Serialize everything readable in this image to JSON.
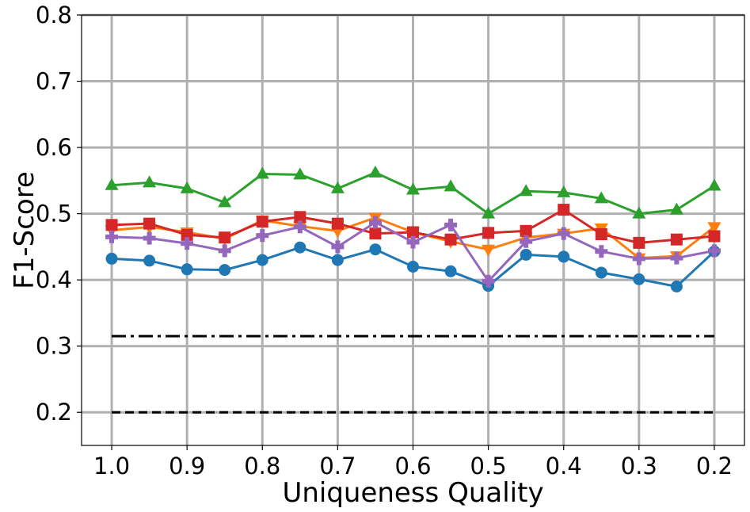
{
  "chart_data": {
    "type": "line",
    "xlabel": "Uniqueness Quality",
    "ylabel": "F1-Score",
    "x": [
      1.0,
      0.95,
      0.9,
      0.85,
      0.8,
      0.75,
      0.7,
      0.65,
      0.6,
      0.55,
      0.5,
      0.45,
      0.4,
      0.35,
      0.3,
      0.25,
      0.2
    ],
    "x_reversed": true,
    "xlim": [
      1.04,
      0.16
    ],
    "ylim": [
      0.15,
      0.8
    ],
    "xticks": [
      1.0,
      0.9,
      0.8,
      0.7,
      0.6,
      0.5,
      0.4,
      0.3,
      0.2
    ],
    "xtick_labels": [
      "1.0",
      "0.9",
      "0.8",
      "0.7",
      "0.6",
      "0.5",
      "0.4",
      "0.3",
      "0.2"
    ],
    "yticks": [
      0.2,
      0.3,
      0.4,
      0.5,
      0.6,
      0.7,
      0.8
    ],
    "ytick_labels": [
      "0.2",
      "0.3",
      "0.4",
      "0.5",
      "0.6",
      "0.7",
      "0.8"
    ],
    "grid": true,
    "grid_color": "#b0b0b0",
    "series": [
      {
        "color": "#1f77b4",
        "marker": "circle",
        "values": [
          0.432,
          0.429,
          0.416,
          0.415,
          0.43,
          0.449,
          0.43,
          0.446,
          0.42,
          0.413,
          0.391,
          0.438,
          0.435,
          0.411,
          0.401,
          0.39,
          0.443
        ]
      },
      {
        "color": "#ff7f0e",
        "marker": "triangle-down",
        "values": [
          0.475,
          0.48,
          0.472,
          0.462,
          0.49,
          0.481,
          0.474,
          0.494,
          0.472,
          0.458,
          0.446,
          0.464,
          0.47,
          0.478,
          0.433,
          0.436,
          0.48
        ]
      },
      {
        "color": "#2ca02c",
        "marker": "triangle-up",
        "values": [
          0.543,
          0.547,
          0.538,
          0.517,
          0.56,
          0.559,
          0.538,
          0.562,
          0.536,
          0.541,
          0.5,
          0.534,
          0.532,
          0.523,
          0.5,
          0.506,
          0.542
        ]
      },
      {
        "color": "#d62728",
        "marker": "square",
        "values": [
          0.483,
          0.485,
          0.468,
          0.464,
          0.488,
          0.495,
          0.485,
          0.47,
          0.472,
          0.461,
          0.471,
          0.474,
          0.506,
          0.469,
          0.456,
          0.461,
          0.466
        ]
      },
      {
        "color": "#9467bd",
        "marker": "plus",
        "values": [
          0.465,
          0.463,
          0.455,
          0.444,
          0.467,
          0.48,
          0.45,
          0.487,
          0.457,
          0.483,
          0.398,
          0.458,
          0.47,
          0.443,
          0.432,
          0.433,
          0.444
        ]
      }
    ],
    "reference_lines": [
      {
        "y": 0.315,
        "x_from": 1.0,
        "x_to": 0.2,
        "style": "dashdot",
        "color": "#000000"
      },
      {
        "y": 0.2,
        "x_from": 1.0,
        "x_to": 0.2,
        "style": "dashed",
        "color": "#000000"
      }
    ]
  }
}
